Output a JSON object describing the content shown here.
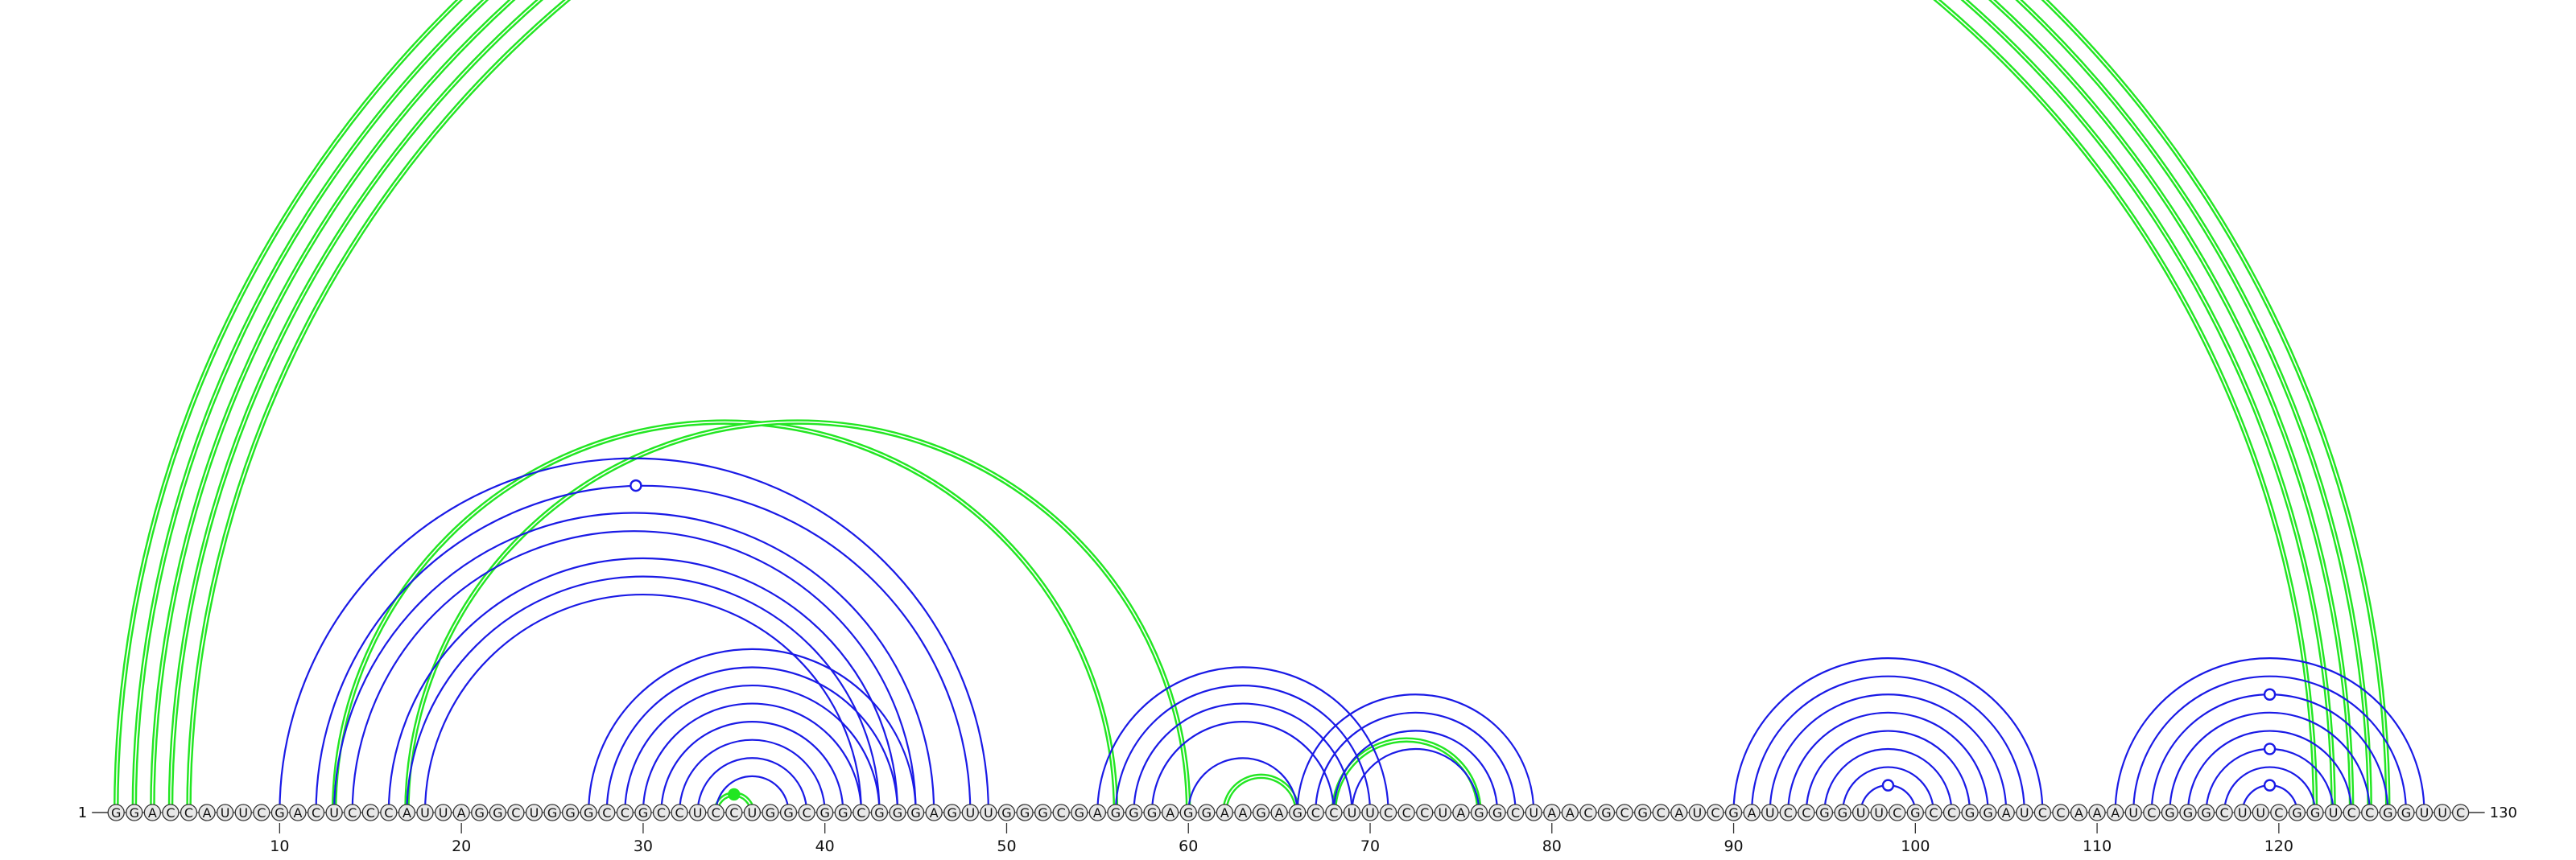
{
  "sequence": "GGACCAUUCGACUCCCAUUAGGCUGGGCCGCCUCCUGGCGGCGGGAGUUGGGCGAGGGAGGAAGAGCCUUCCCUAGGCUAACGCGCAUCGAUCCGGUUCGCCGGAUCCAAAUCGGGCUUCGGUCCGGUUC",
  "start_label": "1",
  "end_label": "130",
  "ticks": [
    10,
    20,
    30,
    40,
    50,
    60,
    70,
    80,
    90,
    100,
    110,
    120
  ],
  "colors": {
    "blue_arc": "#1a1ae6",
    "green_arc": "#22e622",
    "node_fill": "#e8e8e8",
    "node_stroke": "#333333",
    "text": "#111111"
  },
  "structures": [
    {
      "color": "green",
      "pairs": [
        [
          1,
          126
        ],
        [
          2,
          125
        ],
        [
          3,
          124
        ],
        [
          4,
          123
        ],
        [
          5,
          122
        ],
        [
          13,
          56
        ],
        [
          17,
          60
        ],
        [
          34,
          36
        ],
        [
          62,
          66
        ],
        [
          68,
          76
        ]
      ]
    },
    {
      "color": "blue",
      "pairs": [
        [
          10,
          49
        ],
        [
          12,
          48
        ],
        [
          13,
          46
        ],
        [
          14,
          45
        ],
        [
          16,
          44
        ],
        [
          17,
          43
        ],
        [
          18,
          42
        ],
        [
          27,
          45
        ],
        [
          28,
          44
        ],
        [
          29,
          43
        ],
        [
          30,
          42
        ],
        [
          31,
          41
        ],
        [
          32,
          40
        ],
        [
          33,
          39
        ],
        [
          34,
          38
        ],
        [
          55,
          71
        ],
        [
          56,
          70
        ],
        [
          57,
          69
        ],
        [
          58,
          68
        ],
        [
          60,
          66
        ],
        [
          66,
          79
        ],
        [
          67,
          78
        ],
        [
          68,
          77
        ],
        [
          69,
          76
        ],
        [
          90,
          107
        ],
        [
          91,
          106
        ],
        [
          92,
          105
        ],
        [
          93,
          104
        ],
        [
          94,
          103
        ],
        [
          95,
          102
        ],
        [
          96,
          101
        ],
        [
          97,
          100
        ],
        [
          111,
          128
        ],
        [
          112,
          127
        ],
        [
          113,
          126
        ],
        [
          114,
          125
        ],
        [
          115,
          124
        ],
        [
          116,
          123
        ],
        [
          117,
          122
        ],
        [
          118,
          121
        ]
      ]
    }
  ],
  "markers": [
    {
      "x": 29.6,
      "color": "blue",
      "filled": false,
      "ref": [
        12,
        48
      ]
    },
    {
      "x": 35,
      "color": "green",
      "filled": true,
      "ref": [
        34,
        36
      ]
    },
    {
      "x": 98.5,
      "color": "blue",
      "filled": false,
      "ref": [
        97,
        100
      ]
    },
    {
      "x": 119.5,
      "color": "blue",
      "filled": false,
      "ref": [
        118,
        121
      ]
    },
    {
      "x": 119.5,
      "color": "blue",
      "filled": false,
      "ref": [
        116,
        123
      ]
    },
    {
      "x": 119.5,
      "color": "blue",
      "filled": false,
      "ref": [
        113,
        126
      ]
    }
  ]
}
